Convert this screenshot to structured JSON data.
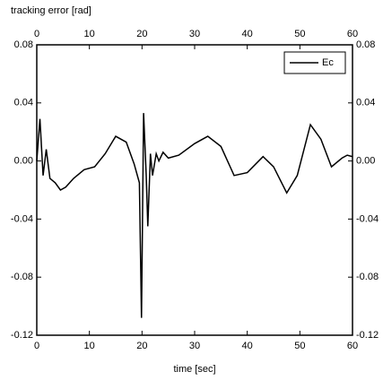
{
  "chart_data": {
    "type": "line",
    "title": "tracking error [rad]",
    "x_label": "time [sec]",
    "xlim": [
      0,
      60
    ],
    "xticks": [
      0,
      10,
      20,
      30,
      40,
      50,
      60
    ],
    "ylim": [
      -0.12,
      0.08
    ],
    "yticks": [
      {
        "value": -0.12,
        "label": "-0.12"
      },
      {
        "value": -0.08,
        "label": "-0.08"
      },
      {
        "value": -0.04,
        "label": "-0.04"
      },
      {
        "value": 0,
        "label": "0.00"
      },
      {
        "value": 0.04,
        "label": "0.04"
      },
      {
        "value": 0.08,
        "label": "0.08"
      }
    ],
    "legend": "upper right",
    "x": [
      0,
      0.6,
      1.2,
      1.8,
      2.5,
      3.5,
      4.5,
      5.5,
      7,
      9,
      11,
      13,
      15,
      17,
      18.5,
      19.5,
      19.9,
      20.3,
      20.8,
      21.1,
      21.6,
      22,
      22.7,
      23.2,
      24,
      25,
      27,
      30,
      32.5,
      35,
      37.5,
      40,
      43,
      45,
      47.5,
      49.5,
      52,
      54,
      56,
      58,
      59,
      60
    ],
    "series": [
      {
        "name": "Ec",
        "color": "#000000",
        "values": [
          0.0,
          0.029,
          -0.01,
          0.008,
          -0.012,
          -0.015,
          -0.02,
          -0.018,
          -0.012,
          -0.006,
          -0.004,
          0.005,
          0.017,
          0.013,
          -0.002,
          -0.015,
          -0.108,
          0.033,
          -0.01,
          -0.045,
          0.005,
          -0.01,
          0.005,
          0.0,
          0.006,
          0.002,
          0.004,
          0.012,
          0.017,
          0.01,
          -0.01,
          -0.008,
          0.003,
          -0.004,
          -0.022,
          -0.01,
          0.025,
          0.015,
          -0.004,
          0.002,
          0.004,
          0.003
        ]
      }
    ]
  }
}
